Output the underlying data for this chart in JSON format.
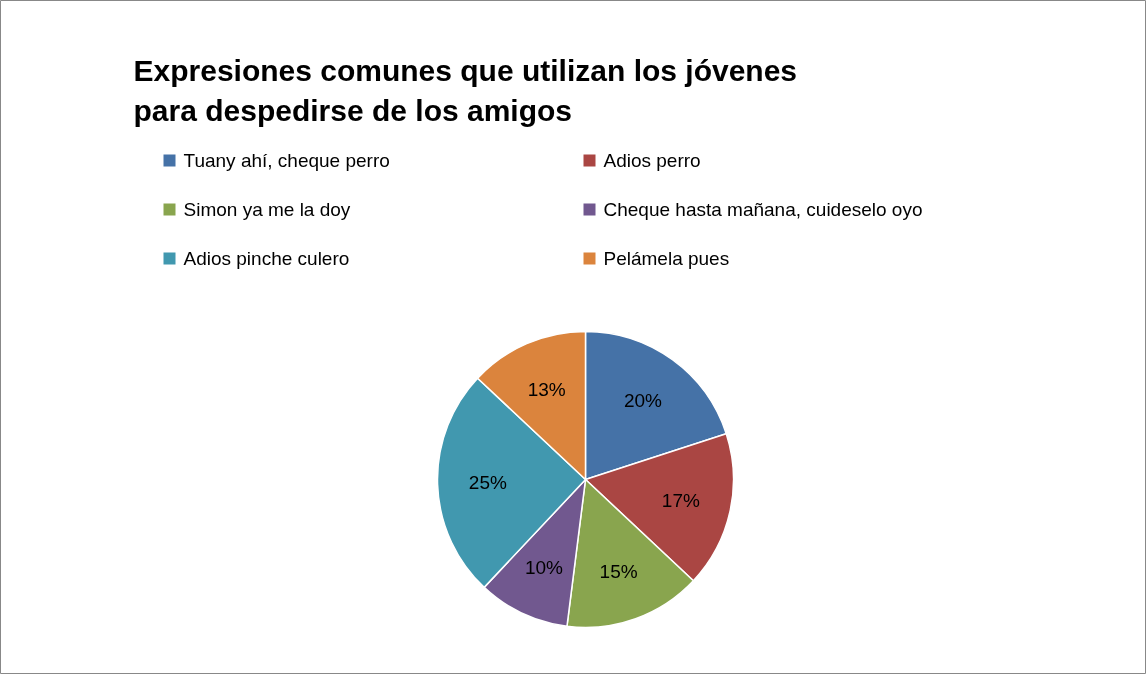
{
  "chart_data": {
    "type": "pie",
    "title": "Expresiones comunes que utilizan los jóvenes para despedirse de los amigos",
    "categories": [
      "Tuany ahí, cheque perro",
      "Adios perro",
      "Simon ya me la doy",
      "Cheque hasta mañana, cuideselo oyo",
      "Adios pinche culero",
      "Pelámela pues"
    ],
    "values": [
      20,
      17,
      15,
      10,
      25,
      13
    ],
    "colors": [
      "#4572a7",
      "#aa4643",
      "#89a54e",
      "#71588f",
      "#4198af",
      "#db843d"
    ],
    "value_labels": [
      "20%",
      "17%",
      "15%",
      "10%",
      "25%",
      "13%"
    ],
    "legend": "top"
  }
}
